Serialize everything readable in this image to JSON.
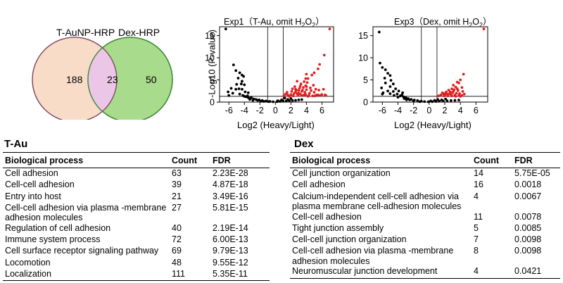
{
  "venn": {
    "left_label": "T-AuNP-HRP",
    "right_label": "Dex-HRP",
    "left_only": "188",
    "overlap": "23",
    "right_only": "50",
    "colors": {
      "left": "#f9dcc8",
      "right": "#a9db8c",
      "overlap": "#ecc6e6",
      "left_stroke": "#e8b89a",
      "right_stroke": "#3c8b3a"
    }
  },
  "volcano_plots": [
    {
      "title_prefix": "Exp1（T-Au, omit H",
      "title_sub": "2",
      "title_mid": "O",
      "title_sub2": "2",
      "title_suffix": "）",
      "ylabel": "-Log10 (P-value)",
      "xlabel": "Log2 (Heavy/Light)"
    },
    {
      "title_prefix": "Exp3（Dex, omit H",
      "title_sub": "2",
      "title_mid": "O",
      "title_sub2": "2",
      "title_suffix": "）",
      "xlabel": "Log2 (Heavy/Light)"
    }
  ],
  "chart_data": [
    {
      "type": "scatter",
      "title": "Exp1（T-Au, omit H2O2）",
      "xlabel": "Log2 (Heavy/Light)",
      "ylabel": "-Log10 (P-value)",
      "xlim": [
        -7.2,
        7.5
      ],
      "ylim": [
        0,
        17
      ],
      "xticks": [
        "-6",
        "-4",
        "-2",
        "0",
        "2",
        "4",
        "6"
      ],
      "yticks": [
        "0",
        "5",
        "10",
        "15"
      ],
      "threshold_lines": {
        "x": [
          -1,
          1
        ],
        "y": 1.3
      },
      "series": [
        {
          "color": "#000000",
          "points": [
            [
              -6.4,
              16.5
            ],
            [
              -5.4,
              8.4
            ],
            [
              -5.1,
              7.1
            ],
            [
              -4.6,
              6.6
            ],
            [
              -4.3,
              6.1
            ],
            [
              -4.1,
              5.8
            ],
            [
              -4.8,
              5.4
            ],
            [
              -4.3,
              4.7
            ],
            [
              -4.4,
              4.1
            ],
            [
              -4.0,
              3.9
            ],
            [
              -5.7,
              3.1
            ],
            [
              -5.1,
              2.9
            ],
            [
              -4.3,
              2.9
            ],
            [
              -6.1,
              2.3
            ],
            [
              -3.9,
              2.3
            ],
            [
              -5.5,
              2.0
            ],
            [
              -3.5,
              2.1
            ],
            [
              -4.6,
              1.8
            ],
            [
              -6.0,
              1.5
            ],
            [
              -3.6,
              1.4
            ],
            [
              -3.8,
              1.2
            ],
            [
              -3.5,
              1.0
            ],
            [
              -3.2,
              0.9
            ],
            [
              -3.1,
              1.0
            ],
            [
              -2.8,
              0.7
            ],
            [
              -2.5,
              0.6
            ],
            [
              -2.1,
              0.5
            ],
            [
              -1.7,
              0.35
            ],
            [
              -1.2,
              0.25
            ],
            [
              -0.7,
              0.15
            ],
            [
              -0.3,
              0.08
            ],
            [
              0.2,
              0.1
            ],
            [
              0.6,
              0.15
            ],
            [
              1.0,
              0.2
            ],
            [
              1.4,
              0.25
            ],
            [
              1.8,
              0.3
            ],
            [
              2.2,
              0.35
            ],
            [
              2.6,
              0.4
            ],
            [
              3.0,
              0.5
            ],
            [
              3.4,
              0.55
            ],
            [
              -2.3,
              0.4
            ],
            [
              -1.9,
              0.2
            ],
            [
              -1.5,
              0.15
            ],
            [
              -0.9,
              0.1
            ],
            [
              0.3,
              0.3
            ],
            [
              0.8,
              0.5
            ],
            [
              1.2,
              0.9
            ],
            [
              1.6,
              0.6
            ],
            [
              2.0,
              0.8
            ],
            [
              -3.3,
              0.6
            ],
            [
              -2.9,
              0.4
            ],
            [
              -4.2,
              1.5
            ],
            [
              -4.0,
              1.3
            ],
            [
              -5.0,
              4.0
            ],
            [
              -4.7,
              3.0
            ]
          ]
        },
        {
          "color": "#e02020",
          "points": [
            [
              7.0,
              16.5
            ],
            [
              6.3,
              10.6
            ],
            [
              5.7,
              8.5
            ],
            [
              5.5,
              7.5
            ],
            [
              5.0,
              6.6
            ],
            [
              4.7,
              6.1
            ],
            [
              4.0,
              6.3
            ],
            [
              4.2,
              5.3
            ],
            [
              3.9,
              5.3
            ],
            [
              4.1,
              4.4
            ],
            [
              3.7,
              4.6
            ],
            [
              3.3,
              4.1
            ],
            [
              3.9,
              3.7
            ],
            [
              2.8,
              4.7
            ],
            [
              2.5,
              3.5
            ],
            [
              3.1,
              3.1
            ],
            [
              3.6,
              3.3
            ],
            [
              4.5,
              3.2
            ],
            [
              2.2,
              3.0
            ],
            [
              2.7,
              2.7
            ],
            [
              3.0,
              2.6
            ],
            [
              3.4,
              2.4
            ],
            [
              3.8,
              2.2
            ],
            [
              4.4,
              2.0
            ],
            [
              5.0,
              2.2
            ],
            [
              5.6,
              2.7
            ],
            [
              6.2,
              2.9
            ],
            [
              6.4,
              1.6
            ],
            [
              5.8,
              1.5
            ],
            [
              5.3,
              1.6
            ],
            [
              4.8,
              1.4
            ],
            [
              4.2,
              1.3
            ],
            [
              3.7,
              1.6
            ],
            [
              3.2,
              1.8
            ],
            [
              2.8,
              1.9
            ],
            [
              2.4,
              1.9
            ],
            [
              2.0,
              1.7
            ],
            [
              1.6,
              1.6
            ],
            [
              1.3,
              1.8
            ],
            [
              1.1,
              1.4
            ],
            [
              1.5,
              2.2
            ],
            [
              2.1,
              2.4
            ],
            [
              2.6,
              2.3
            ],
            [
              3.0,
              2.0
            ],
            [
              3.5,
              2.7
            ],
            [
              4.0,
              2.8
            ],
            [
              4.6,
              2.6
            ],
            [
              2.3,
              1.4
            ],
            [
              2.9,
              1.5
            ],
            [
              3.4,
              1.5
            ],
            [
              3.9,
              1.7
            ],
            [
              4.3,
              1.5
            ],
            [
              5.1,
              1.4
            ],
            [
              5.5,
              1.6
            ],
            [
              6.0,
              1.7
            ],
            [
              1.8,
              1.3
            ],
            [
              4.9,
              3.8
            ],
            [
              3.2,
              3.6
            ],
            [
              5.2,
              2.9
            ],
            [
              4.0,
              3.5
            ],
            [
              2.6,
              2.9
            ],
            [
              6.5,
              1.5
            ]
          ]
        }
      ]
    },
    {
      "type": "scatter",
      "title": "Exp3（Dex, omit H2O2）",
      "xlabel": "Log2 (Heavy/Light)",
      "ylabel": "",
      "xlim": [
        -7.2,
        7.5
      ],
      "ylim": [
        0,
        17
      ],
      "xticks": [
        "-6",
        "-4",
        "-2",
        "0",
        "2",
        "4",
        "6"
      ],
      "yticks": [
        "0",
        "5",
        "10",
        "15"
      ],
      "threshold_lines": {
        "x": [
          -1,
          1
        ],
        "y": 1.3
      },
      "series": [
        {
          "color": "#000000",
          "points": [
            [
              -6.4,
              15.8
            ],
            [
              -6.3,
              8.8
            ],
            [
              -6.0,
              7.8
            ],
            [
              -5.6,
              7.3
            ],
            [
              -5.3,
              6.5
            ],
            [
              -5.0,
              6.0
            ],
            [
              -5.7,
              5.4
            ],
            [
              -4.9,
              4.9
            ],
            [
              -5.6,
              4.3
            ],
            [
              -4.6,
              4.1
            ],
            [
              -5.0,
              3.5
            ],
            [
              -6.1,
              3.2
            ],
            [
              -4.3,
              3.0
            ],
            [
              -5.3,
              2.5
            ],
            [
              -4.6,
              2.4
            ],
            [
              -3.9,
              2.5
            ],
            [
              -5.9,
              2.1
            ],
            [
              -5.0,
              1.9
            ],
            [
              -3.4,
              2.1
            ],
            [
              -4.1,
              1.8
            ],
            [
              -6.0,
              1.8
            ],
            [
              -4.5,
              1.5
            ],
            [
              -3.7,
              1.4
            ],
            [
              -3.3,
              1.2
            ],
            [
              -3.0,
              1.0
            ],
            [
              -2.7,
              0.8
            ],
            [
              -2.3,
              0.6
            ],
            [
              -1.9,
              0.45
            ],
            [
              -1.5,
              0.35
            ],
            [
              -1.0,
              0.2
            ],
            [
              -0.6,
              0.12
            ],
            [
              -0.1,
              0.08
            ],
            [
              0.4,
              0.1
            ],
            [
              0.9,
              0.15
            ],
            [
              1.3,
              0.2
            ],
            [
              1.8,
              0.25
            ],
            [
              2.3,
              0.3
            ],
            [
              2.8,
              0.35
            ],
            [
              3.3,
              0.4
            ],
            [
              3.8,
              0.45
            ],
            [
              -2.5,
              0.5
            ],
            [
              -2.0,
              0.3
            ],
            [
              -1.2,
              0.1
            ],
            [
              0.2,
              0.25
            ],
            [
              0.7,
              0.4
            ],
            [
              1.1,
              0.6
            ],
            [
              1.6,
              0.5
            ],
            [
              2.1,
              0.7
            ],
            [
              -3.5,
              1.6
            ],
            [
              -4.0,
              1.1
            ],
            [
              -2.9,
              0.5
            ],
            [
              -3.2,
              0.8
            ]
          ]
        },
        {
          "color": "#e02020",
          "points": [
            [
              7.0,
              16.5
            ],
            [
              4.4,
              6.3
            ],
            [
              4.0,
              5.0
            ],
            [
              3.8,
              4.3
            ],
            [
              3.6,
              4.5
            ],
            [
              3.1,
              3.8
            ],
            [
              3.4,
              3.4
            ],
            [
              4.2,
              3.3
            ],
            [
              2.9,
              3.0
            ],
            [
              2.5,
              2.7
            ],
            [
              3.2,
              2.8
            ],
            [
              3.7,
              2.6
            ],
            [
              4.3,
              2.4
            ],
            [
              2.2,
              2.3
            ],
            [
              2.7,
              2.3
            ],
            [
              3.0,
              2.1
            ],
            [
              3.5,
              2.0
            ],
            [
              3.9,
              1.9
            ],
            [
              1.8,
              1.9
            ],
            [
              2.3,
              1.8
            ],
            [
              2.8,
              1.7
            ],
            [
              3.3,
              1.6
            ],
            [
              3.8,
              1.5
            ],
            [
              4.2,
              1.5
            ],
            [
              1.5,
              1.6
            ],
            [
              1.9,
              1.4
            ],
            [
              2.4,
              1.4
            ],
            [
              2.9,
              1.4
            ],
            [
              3.4,
              1.3
            ],
            [
              4.0,
              1.3
            ],
            [
              1.2,
              1.4
            ],
            [
              2.1,
              2.0
            ],
            [
              2.6,
              1.9
            ],
            [
              3.1,
              2.4
            ],
            [
              4.5,
              1.8
            ],
            [
              3.6,
              3.0
            ],
            [
              2.0,
              1.6
            ],
            [
              1.7,
              2.1
            ]
          ]
        }
      ]
    }
  ],
  "tables": {
    "tau": {
      "title": "T-Au",
      "headers": [
        "Biological process",
        "Count",
        "FDR"
      ],
      "rows": [
        [
          "Cell adhesion",
          "63",
          "2.23E-28"
        ],
        [
          "Cell-cell adhesion",
          "39",
          "4.87E-18"
        ],
        [
          "Entry into host",
          "21",
          "3.49E-16"
        ],
        [
          "Cell-cell adhesion via plasma -membrane adhesion molecules",
          "27",
          "5.81E-15"
        ],
        [
          "Regulation of cell adhesion",
          "40",
          "2.19E-14"
        ],
        [
          "Immune system process",
          "72",
          "6.00E-13"
        ],
        [
          "Cell surface receptor signaling pathway",
          "69",
          "9.79E-13"
        ],
        [
          "Locomotion",
          "48",
          "9.55E-12"
        ],
        [
          "Localization",
          "111",
          "5.35E-11"
        ]
      ]
    },
    "dex": {
      "title": "Dex",
      "headers": [
        "Biological process",
        "Count",
        "FDR"
      ],
      "rows": [
        [
          "Cell junction organization",
          "14",
          "5.75E-05"
        ],
        [
          "Cell adhesion",
          "16",
          "0.0018"
        ],
        [
          "Calcium-independent cell-cell adhesion via plasma membrane cell-adhesion molecules",
          "4",
          "0.0067"
        ],
        [
          "Cell-cell adhesion",
          "11",
          "0.0078"
        ],
        [
          "Tight junction assembly",
          "5",
          "0.0085"
        ],
        [
          "Cell-cell junction organization",
          "7",
          "0.0098"
        ],
        [
          "Cell-cell adhesion via plasma -membrane adhesion molecules",
          "8",
          "0.0098"
        ],
        [
          "Neuromuscular junction development",
          "4",
          "0.0421"
        ]
      ]
    }
  }
}
